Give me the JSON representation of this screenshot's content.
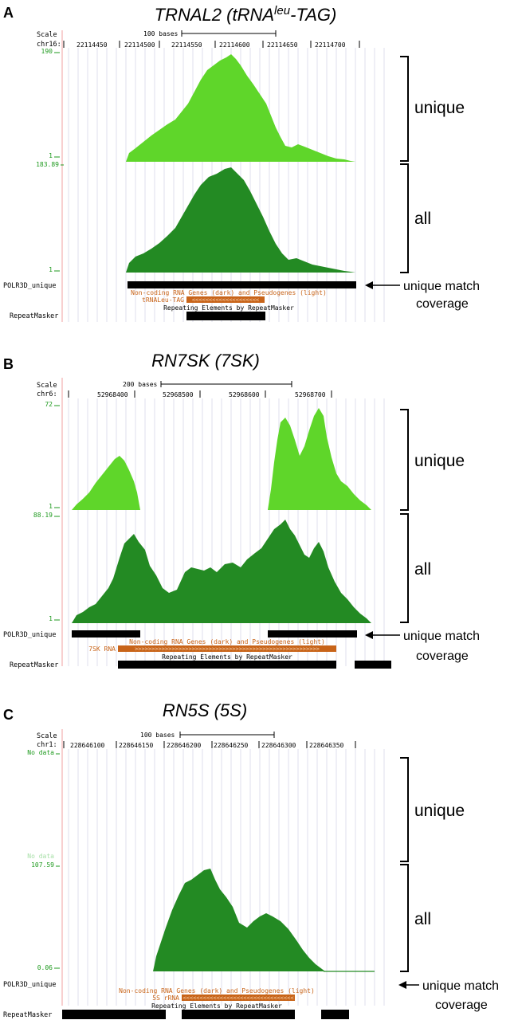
{
  "panels": [
    {
      "letter": "A",
      "title_main": "TRNAL2 (tRNA",
      "title_sup": "leu",
      "title_tail": "-TAG)",
      "scale_label": "Scale",
      "scale_text": "100 bases",
      "chr_label": "chr16:",
      "ticks": [
        "22114450",
        "22114500",
        "22114550",
        "22114600",
        "22114650",
        "22114700"
      ],
      "unique_max": "190",
      "unique_min": "1",
      "all_max": "183.89",
      "all_min": "1",
      "track_label": "POLR3D_unique",
      "gene_track_title": "Non-coding RNA Genes (dark) and Pseudogenes (light)",
      "gene_name": "tRNALeu-TAG",
      "repeat_title": "Repeating Elements by RepeatMasker",
      "repeat_label": "RepeatMasker",
      "bracket_unique": "unique",
      "bracket_all": "all",
      "annotation_line1": "unique match",
      "annotation_line2": "coverage"
    },
    {
      "letter": "B",
      "title_main": "RN7SK (7SK)",
      "scale_label": "Scale",
      "scale_text": "200 bases",
      "chr_label": "chr6:",
      "ticks": [
        "52968400",
        "52968500",
        "52968600",
        "52968700"
      ],
      "unique_max": "72",
      "unique_min": "1",
      "all_max": "88.19",
      "all_min": "1",
      "track_label": "POLR3D_unique",
      "gene_track_title": "Non-coding RNA Genes (dark) and Pseudogenes (light)",
      "gene_name": "7SK RNA",
      "repeat_title": "Repeating Elements by RepeatMasker",
      "repeat_label": "RepeatMasker",
      "bracket_unique": "unique",
      "bracket_all": "all",
      "annotation_line1": "unique match",
      "annotation_line2": "coverage"
    },
    {
      "letter": "C",
      "title_main": "RN5S (5S)",
      "scale_label": "Scale",
      "scale_text": "100 bases",
      "chr_label": "chr1:",
      "ticks": [
        "228646100",
        "228646150",
        "228646200",
        "228646250",
        "228646300",
        "228646350"
      ],
      "unique_max": "No data",
      "unique_min": "No data",
      "all_max": "107.59",
      "all_min": "0.06",
      "track_label": "POLR3D_unique",
      "gene_track_title": "Non-coding RNA Genes (dark) and Pseudogenes (light)",
      "gene_name": "5S rRNA",
      "repeat_title": "Repeating Elements by RepeatMasker",
      "repeat_label": "RepeatMasker",
      "bracket_unique": "unique",
      "bracket_all": "all",
      "annotation_line1": "unique match",
      "annotation_line2": "coverage"
    }
  ],
  "colors": {
    "unique_fill": "#5fd62a",
    "all_fill": "#238a23",
    "axis_green": "#1e9a1e",
    "gene_orange": "#c86419",
    "grid": "#c8c8dc",
    "red_line": "#f0a0a0"
  }
}
